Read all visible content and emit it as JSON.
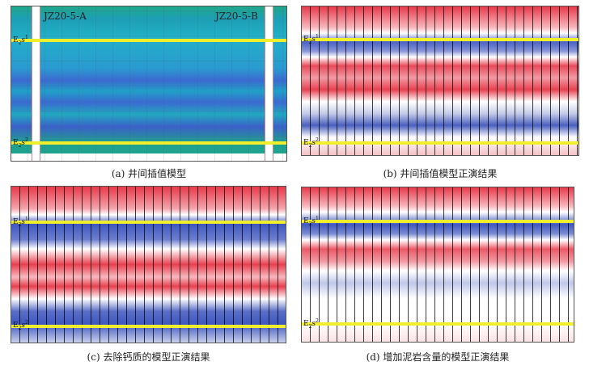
{
  "panels": [
    {
      "id": "a",
      "caption": "(a) 井间插值模型",
      "wells": [
        "JZ20-5-A",
        "JZ20-5-B"
      ]
    },
    {
      "id": "b",
      "caption": "(b) 井间插值模型正演结果"
    },
    {
      "id": "c",
      "caption": "(c) 去除钙质的模型正演结果"
    },
    {
      "id": "d",
      "caption": "(d) 增加泥岩含量的模型正演结果"
    }
  ],
  "horizons": {
    "top": {
      "base": "E",
      "sub": "2",
      "s": "s",
      "sup": "1"
    },
    "bottom": {
      "base": "E",
      "sub": "2",
      "s": "s",
      "sup": "2"
    }
  },
  "colors": {
    "horizon": "#f1ef2c",
    "positive": "#e8394a",
    "negative": "#3a4fb0",
    "model_bg": "#1ea88a"
  }
}
